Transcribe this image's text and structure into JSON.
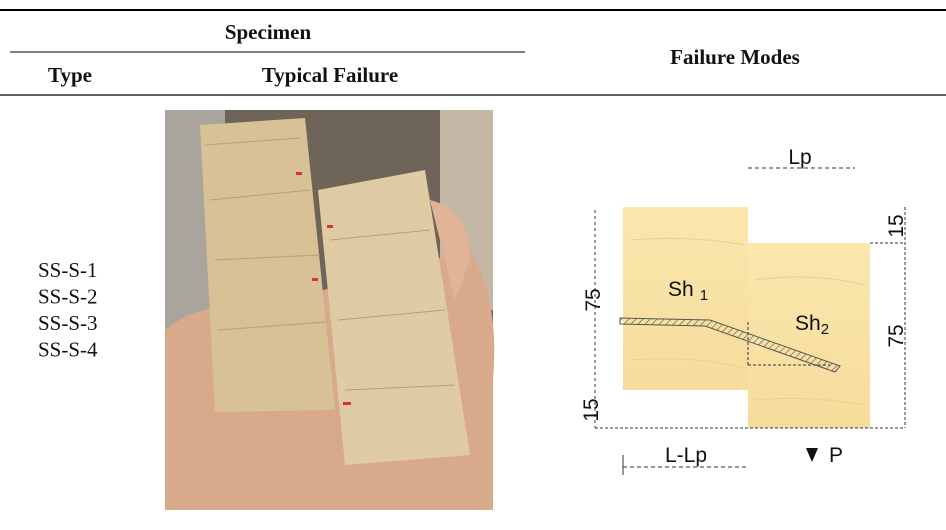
{
  "header": {
    "specimen": "Specimen",
    "type": "Type",
    "typical_failure": "Typical Failure",
    "failure_modes": "Failure Modes"
  },
  "rows": [
    {
      "types": [
        "SS-S-1",
        "SS-S-2",
        "SS-S-3",
        "SS-S-4"
      ]
    }
  ],
  "diagram": {
    "lp": "Lp",
    "top_15": "15",
    "left_75": "75",
    "sh1": "Sh",
    "sh1_sub": "1",
    "sh2": "Sh",
    "sh2_sub": "2",
    "right_75": "75",
    "bottom_15": "15",
    "l_lp": "L-Lp",
    "p": "P"
  }
}
